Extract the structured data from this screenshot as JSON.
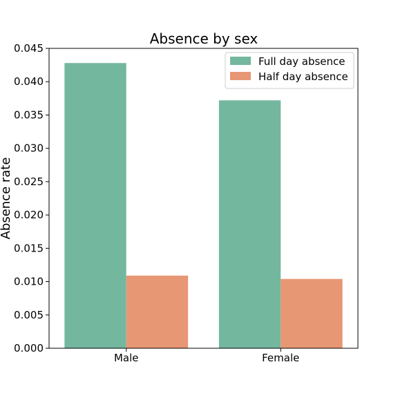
{
  "chart_data": {
    "type": "bar",
    "title": "Absence by sex",
    "xlabel": "",
    "ylabel": "Absence rate",
    "categories": [
      "Male",
      "Female"
    ],
    "series": [
      {
        "name": "Full day absence",
        "color": "#74b79f",
        "values": [
          0.0428,
          0.0372
        ]
      },
      {
        "name": "Half day absence",
        "color": "#e89774",
        "values": [
          0.0109,
          0.0104
        ]
      }
    ],
    "ylim": [
      0,
      0.045
    ],
    "yticks": [
      "0.000",
      "0.005",
      "0.010",
      "0.015",
      "0.020",
      "0.025",
      "0.030",
      "0.035",
      "0.040",
      "0.045"
    ],
    "grid": false,
    "legend_position": "top-right"
  }
}
